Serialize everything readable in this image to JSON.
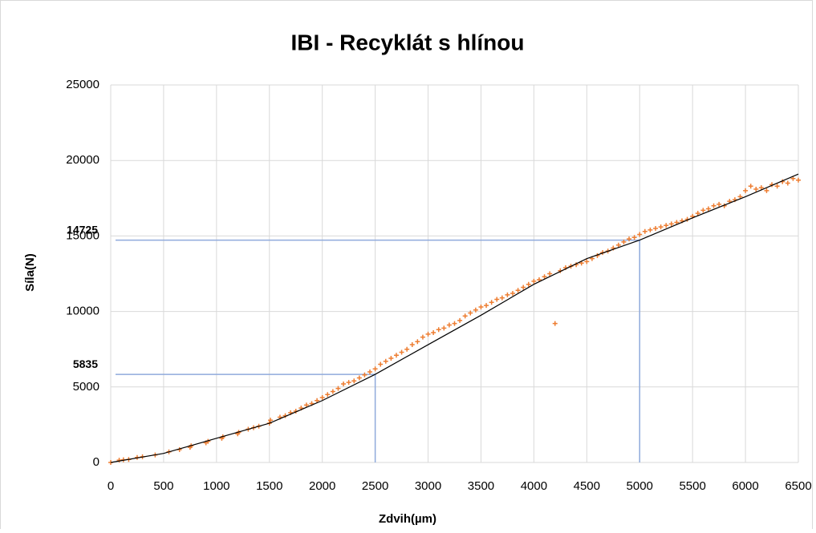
{
  "chart_data": {
    "type": "scatter",
    "title": "IBI - Recyklát s hlínou",
    "xlabel": "Zdvih(µm)",
    "ylabel": "Síla(N)",
    "xlim": [
      0,
      6500
    ],
    "xticks": [
      0,
      500,
      1000,
      1500,
      2000,
      2500,
      3000,
      3500,
      4000,
      4500,
      5000,
      5500,
      6000,
      6500
    ],
    "ylim": [
      0,
      25000
    ],
    "yticks": [
      0,
      5000,
      10000,
      15000,
      20000,
      25000
    ],
    "grid": true,
    "series": [
      {
        "type": "scatter",
        "color": "#ed7d31",
        "x": [
          0,
          80,
          120,
          170,
          250,
          300,
          420,
          550,
          650,
          750,
          760,
          900,
          920,
          1050,
          1060,
          1200,
          1210,
          1300,
          1350,
          1400,
          1500,
          1510,
          1600,
          1650,
          1700,
          1750,
          1800,
          1850,
          1900,
          1950,
          2000,
          2050,
          2100,
          2150,
          2200,
          2250,
          2300,
          2350,
          2400,
          2450,
          2500,
          2550,
          2600,
          2650,
          2700,
          2750,
          2800,
          2850,
          2900,
          2950,
          3000,
          3050,
          3100,
          3150,
          3200,
          3250,
          3300,
          3350,
          3400,
          3450,
          3500,
          3550,
          3600,
          3650,
          3700,
          3750,
          3800,
          3850,
          3900,
          3950,
          4000,
          4050,
          4100,
          4150,
          4200,
          4250,
          4300,
          4350,
          4400,
          4450,
          4500,
          4550,
          4600,
          4650,
          4700,
          4750,
          4800,
          4850,
          4900,
          4950,
          5000,
          5050,
          5100,
          5150,
          5200,
          5250,
          5300,
          5350,
          5400,
          5450,
          5500,
          5550,
          5600,
          5650,
          5700,
          5750,
          5800,
          5850,
          5900,
          5950,
          6000,
          6050,
          6100,
          6150,
          6200,
          6250,
          6300,
          6350,
          6400,
          6450,
          6500
        ],
        "values": [
          0,
          150,
          180,
          200,
          330,
          380,
          500,
          700,
          850,
          1000,
          1100,
          1300,
          1400,
          1600,
          1700,
          1900,
          2000,
          2200,
          2300,
          2400,
          2600,
          2800,
          3000,
          3100,
          3300,
          3400,
          3600,
          3800,
          3900,
          4100,
          4300,
          4500,
          4700,
          4900,
          5200,
          5300,
          5400,
          5600,
          5800,
          6000,
          6200,
          6500,
          6700,
          6900,
          7100,
          7300,
          7500,
          7800,
          8000,
          8300,
          8500,
          8600,
          8800,
          8900,
          9100,
          9200,
          9400,
          9700,
          9900,
          10100,
          10300,
          10400,
          10600,
          10800,
          10900,
          11100,
          11200,
          11400,
          11600,
          11800,
          12000,
          12100,
          12300,
          12500,
          9200,
          12700,
          12900,
          13000,
          13100,
          13200,
          13300,
          13500,
          13700,
          13900,
          14000,
          14200,
          14400,
          14600,
          14800,
          14900,
          15100,
          15300,
          15400,
          15500,
          15600,
          15700,
          15800,
          15900,
          16000,
          16100,
          16300,
          16500,
          16700,
          16800,
          17000,
          17100,
          17000,
          17300,
          17400,
          17600,
          18000,
          18300,
          18100,
          18200,
          18000,
          18400,
          18300,
          18600,
          18500,
          18800,
          18700
        ]
      },
      {
        "type": "line",
        "color": "#000000",
        "x": [
          0,
          500,
          1000,
          1500,
          2000,
          2500,
          3000,
          3500,
          4000,
          4500,
          5000,
          5500,
          6000,
          6500
        ],
        "values": [
          0,
          600,
          1600,
          2600,
          4100,
          5835,
          7800,
          9750,
          11800,
          13500,
          14725,
          16200,
          17600,
          19100
        ]
      }
    ],
    "annotations": [
      {
        "x": 5000,
        "y": 14725,
        "color": "#8faadc"
      },
      {
        "x": 2500,
        "y": 5835,
        "color": "#8faadc"
      }
    ]
  }
}
